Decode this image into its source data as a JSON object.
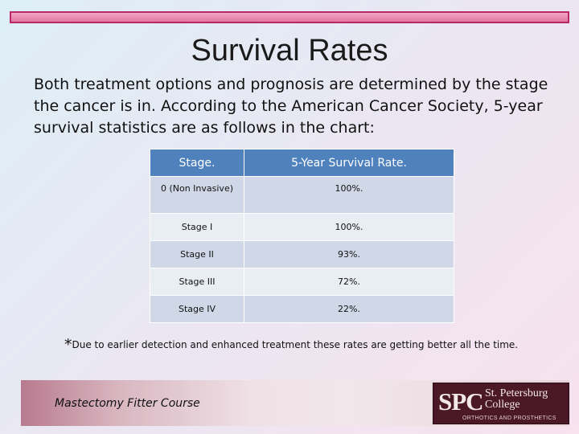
{
  "title": "Survival Rates",
  "intro": "Both treatment options and prognosis are determined by the stage the cancer is in. According to the American Cancer Society, 5-year survival statistics are as follows in the chart:",
  "table": {
    "headers": [
      "Stage.",
      "5-Year Survival Rate."
    ],
    "rows": [
      {
        "stage": "0 (Non Invasive)",
        "rate": "100%."
      },
      {
        "stage": "Stage I",
        "rate": "100%."
      },
      {
        "stage": "Stage II",
        "rate": "93%."
      },
      {
        "stage": "Stage III",
        "rate": "72%."
      },
      {
        "stage": "Stage IV",
        "rate": "22%."
      }
    ]
  },
  "footnote": {
    "star": "*",
    "text": "Due to earlier detection and enhanced treatment these rates are getting better all the time."
  },
  "footer": {
    "course": "Mastectomy Fitter Course",
    "logo_spc": "SPC",
    "logo_line1": "St. Petersburg",
    "logo_line2": "College",
    "logo_sub": "ORTHOTICS AND PROSTHETICS"
  },
  "colors": {
    "accent_bar": "#e2789f",
    "table_header": "#4f81bd",
    "row_dark": "#d0d8e8",
    "row_light": "#e9edf4",
    "logo_bg": "#4a1826"
  }
}
